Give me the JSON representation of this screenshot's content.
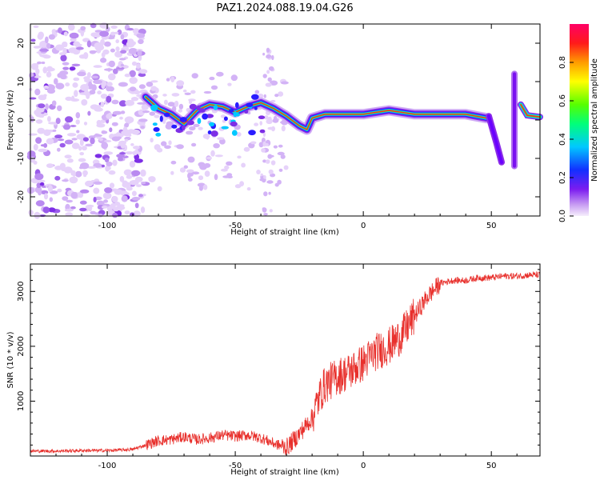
{
  "title": "PAZ1.2024.088.19.04.G26",
  "chart_data": [
    {
      "type": "heatmap",
      "xlabel": "Height of straight line (km)",
      "ylabel": "Frequency (Hz)",
      "xlim": [
        -130,
        69
      ],
      "ylim": [
        -25,
        25
      ],
      "xticks": [
        -100,
        -50,
        0,
        50
      ],
      "yticks": [
        -20,
        -10,
        0,
        10,
        20
      ],
      "colorbar": {
        "label": "Normalized spectral amplitude",
        "ticks": [
          "0.0",
          "0.2",
          "0.4",
          "0.6",
          "0.8"
        ],
        "range": [
          0,
          1
        ],
        "colormap": "gist_rainbow-like (white/violet at 0, blue, cyan, green, yellow, orange, red/magenta at 1)"
      },
      "ridge": {
        "description": "spectral peak frequency vs height (main energy band)",
        "x": [
          -85,
          -80,
          -75,
          -70,
          -65,
          -60,
          -55,
          -50,
          -45,
          -40,
          -35,
          -30,
          -25,
          -22,
          -20,
          -15,
          -10,
          -5,
          0,
          10,
          20,
          30,
          40,
          48,
          52,
          55,
          60,
          65,
          69
        ],
        "y": [
          6,
          3,
          1.5,
          -1,
          2.5,
          4,
          3.5,
          2,
          3.5,
          4.5,
          3,
          1,
          -1.5,
          -2.5,
          0.5,
          1.5,
          1.5,
          1.5,
          1.5,
          2.5,
          1.5,
          1.5,
          1.5,
          0.5,
          -7,
          -9,
          7,
          1.5,
          0.8
        ]
      }
    },
    {
      "type": "line",
      "xlabel": "Height of straight line (km)",
      "ylabel": "SNR (10 * v/v)",
      "xlim": [
        -130,
        69
      ],
      "ylim": [
        0,
        3500
      ],
      "xticks": [
        -100,
        -50,
        0,
        50
      ],
      "yticks": [
        1000,
        2000,
        3000
      ],
      "series": [
        {
          "color": "#e8302c",
          "x": [
            -130,
            -120,
            -110,
            -100,
            -90,
            -85,
            -80,
            -75,
            -70,
            -65,
            -60,
            -55,
            -50,
            -45,
            -40,
            -35,
            -30,
            -25,
            -20,
            -17,
            -15,
            -10,
            -5,
            0,
            5,
            10,
            15,
            20,
            25,
            30,
            35,
            40,
            45,
            50,
            55,
            60,
            65,
            69
          ],
          "y": [
            90,
            90,
            100,
            100,
            120,
            200,
            280,
            300,
            350,
            300,
            330,
            380,
            360,
            380,
            330,
            230,
            150,
            400,
            700,
            1100,
            1300,
            1450,
            1550,
            1700,
            1900,
            2000,
            2200,
            2550,
            2900,
            3150,
            3200,
            3200,
            3250,
            3250,
            3280,
            3280,
            3300,
            3300
          ]
        }
      ]
    }
  ]
}
